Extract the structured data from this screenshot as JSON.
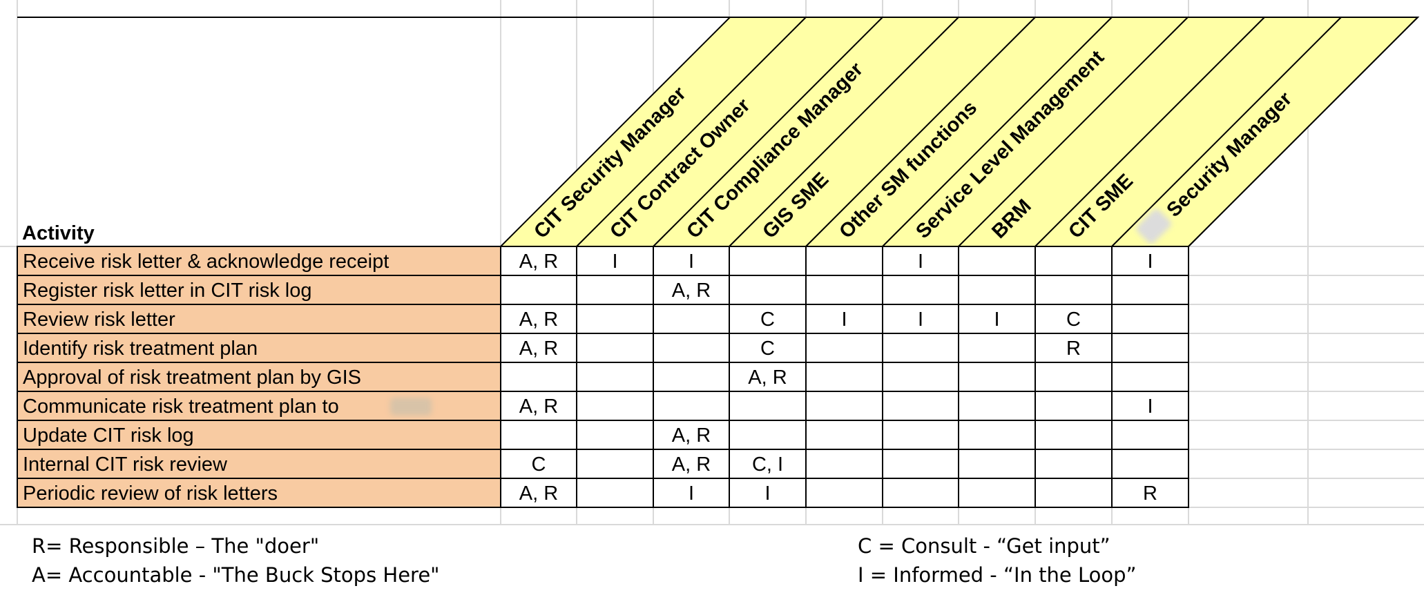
{
  "activity_header": "Activity",
  "roles": [
    "CIT Security Manager",
    "CIT Contract Owner",
    "CIT Compliance Manager",
    "GIS SME",
    "Other SM functions",
    "Service Level Management",
    "BRM",
    "CIT SME",
    "Security Manager"
  ],
  "rows": [
    {
      "activity": "Receive risk letter & acknowledge receipt",
      "cells": [
        "A, R",
        "I",
        "I",
        "",
        "",
        "I",
        "",
        "",
        "I"
      ]
    },
    {
      "activity": "Register risk letter in CIT risk log",
      "cells": [
        "",
        "",
        "A, R",
        "",
        "",
        "",
        "",
        "",
        ""
      ]
    },
    {
      "activity": "Review risk letter",
      "cells": [
        "A, R",
        "",
        "",
        "C",
        "I",
        "I",
        "I",
        "C",
        ""
      ]
    },
    {
      "activity": "Identify risk treatment plan",
      "cells": [
        "A, R",
        "",
        "",
        "C",
        "",
        "",
        "",
        "R",
        ""
      ]
    },
    {
      "activity": "Approval of risk treatment plan by GIS",
      "cells": [
        "",
        "",
        "",
        "A, R",
        "",
        "",
        "",
        "",
        ""
      ]
    },
    {
      "activity": "Communicate risk treatment plan to",
      "cells": [
        "A, R",
        "",
        "",
        "",
        "",
        "",
        "",
        "",
        "I"
      ]
    },
    {
      "activity": "Update CIT risk log",
      "cells": [
        "",
        "",
        "A, R",
        "",
        "",
        "",
        "",
        "",
        ""
      ]
    },
    {
      "activity": "Internal CIT risk review",
      "cells": [
        "C",
        "",
        "A, R",
        "C, I",
        "",
        "",
        "",
        "",
        ""
      ]
    },
    {
      "activity": "Periodic review of risk letters",
      "cells": [
        "A, R",
        "",
        "I",
        "I",
        "",
        "",
        "",
        "",
        "R"
      ]
    }
  ],
  "legend": {
    "responsible": "R= Responsible – The \"doer\"",
    "accountable": "A= Accountable - \"The Buck Stops Here\"",
    "consult": "C = Consult - “Get input”",
    "informed": "I = Informed - “In the Loop”"
  },
  "colors": {
    "header_fill": "#ffffa6",
    "activity_fill": "#f8cba2",
    "gridline": "#d9d9d9",
    "border": "#000000"
  }
}
